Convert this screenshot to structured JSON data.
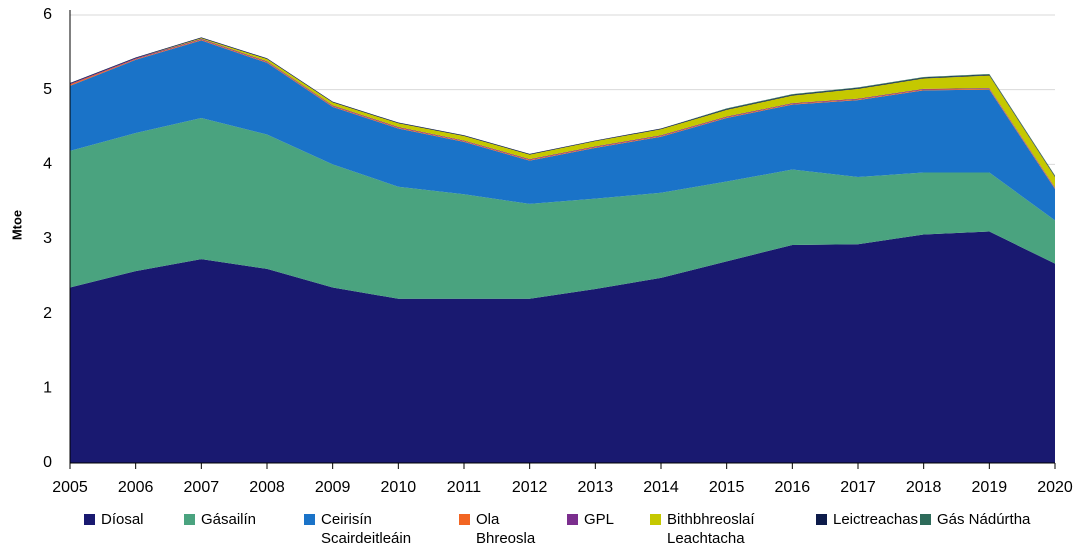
{
  "chart_data": {
    "type": "stacked_area",
    "ylabel": "Mtoe",
    "x": [
      2005,
      2006,
      2007,
      2008,
      2009,
      2010,
      2011,
      2012,
      2013,
      2014,
      2015,
      2016,
      2017,
      2018,
      2019,
      2020
    ],
    "xlim": [
      2005,
      2020
    ],
    "xticks": [
      2005,
      2006,
      2007,
      2008,
      2009,
      2010,
      2011,
      2012,
      2013,
      2014,
      2015,
      2016,
      2017,
      2018,
      2019,
      2020
    ],
    "ylim": [
      0,
      6
    ],
    "yticks": [
      0,
      1,
      2,
      3,
      4,
      5,
      6
    ],
    "grid": true,
    "legend": "bottom",
    "series": [
      {
        "name": "Díosal",
        "color": "#191970",
        "values": [
          2.35,
          2.57,
          2.73,
          2.6,
          2.35,
          2.2,
          2.2,
          2.2,
          2.33,
          2.48,
          2.7,
          2.92,
          2.93,
          3.06,
          3.1,
          2.67
        ]
      },
      {
        "name": "Gásailín",
        "color": "#4aa37f",
        "values": [
          1.83,
          1.85,
          1.89,
          1.8,
          1.65,
          1.5,
          1.4,
          1.27,
          1.21,
          1.14,
          1.07,
          1.01,
          0.9,
          0.83,
          0.79,
          0.58
        ]
      },
      {
        "name": "Ceirisín Scairdeitleáin",
        "color": "#1a73c8",
        "values": [
          0.87,
          0.98,
          1.04,
          0.96,
          0.77,
          0.78,
          0.7,
          0.58,
          0.68,
          0.75,
          0.85,
          0.87,
          1.03,
          1.1,
          1.11,
          0.42
        ]
      },
      {
        "name": "Ola Bhreosla",
        "color": "#f26522",
        "values": [
          0.02,
          0.01,
          0.01,
          0.01,
          0.01,
          0.01,
          0.01,
          0.01,
          0.01,
          0.01,
          0.01,
          0.01,
          0.01,
          0.01,
          0.01,
          0.01
        ]
      },
      {
        "name": "GPL",
        "color": "#7b2e8e",
        "values": [
          0.01,
          0.01,
          0.01,
          0.01,
          0.01,
          0.01,
          0.01,
          0.01,
          0.01,
          0.01,
          0.01,
          0.01,
          0.01,
          0.01,
          0.01,
          0.01
        ]
      },
      {
        "name": "Bithbhreoslaí Leachtacha",
        "color": "#c5c800",
        "values": [
          0,
          0,
          0.01,
          0.03,
          0.04,
          0.05,
          0.06,
          0.06,
          0.07,
          0.08,
          0.09,
          0.1,
          0.13,
          0.14,
          0.17,
          0.14
        ]
      },
      {
        "name": "Leictreachas",
        "color": "#0d1b4a",
        "values": [
          0.01,
          0.01,
          0.01,
          0.01,
          0.01,
          0.01,
          0.01,
          0.01,
          0.01,
          0.01,
          0.01,
          0.01,
          0.01,
          0.01,
          0.01,
          0.01
        ]
      },
      {
        "name": "Gás Nádúrtha",
        "color": "#2e6b5a",
        "values": [
          0,
          0,
          0,
          0,
          0,
          0,
          0,
          0,
          0,
          0,
          0.01,
          0.01,
          0.01,
          0.01,
          0.01,
          0.01
        ]
      }
    ]
  }
}
